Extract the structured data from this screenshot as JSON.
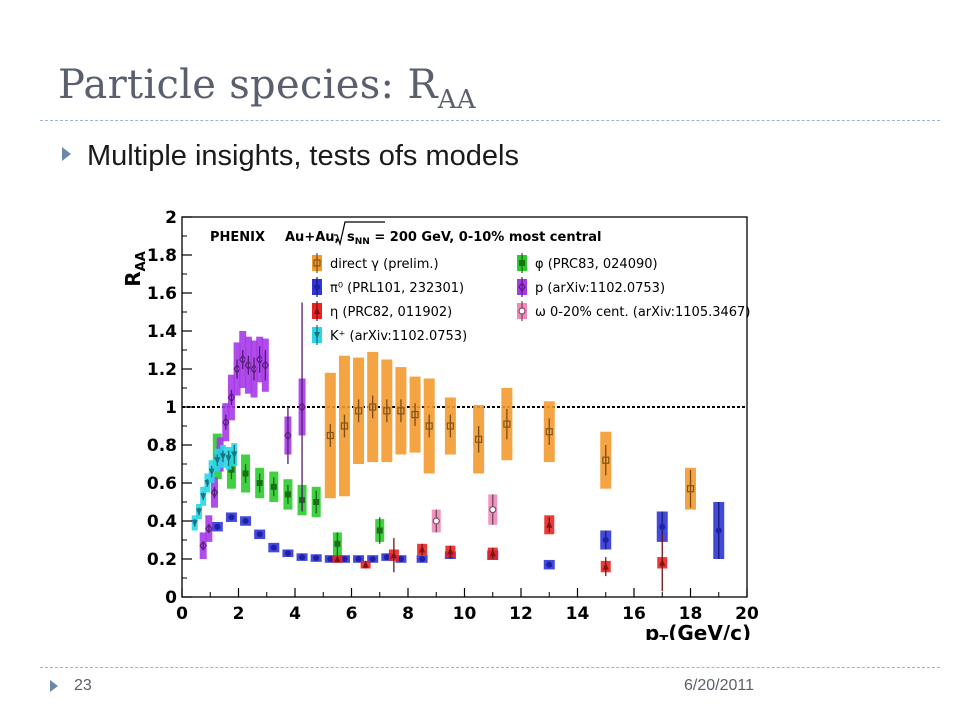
{
  "slide": {
    "title_main": "Particle species: R",
    "title_sub": "AA",
    "bullet": "Multiple insights, tests ofs models",
    "page_number": "23",
    "date": "6/20/2011"
  },
  "chart_data": {
    "type": "scatter",
    "header": {
      "experiment": "PHENIX",
      "system": "Au+Au,",
      "energy_sqrt": "s",
      "energy_sub": "NN",
      "energy_rest": " = 200 GeV, 0-10% most central"
    },
    "ylabel_main": "R",
    "ylabel_sub": "AA",
    "xlabel_main": "p",
    "xlabel_sub": "T",
    "xlabel_rest": "(GeV/c)",
    "xlim": [
      0,
      20
    ],
    "ylim": [
      0,
      2
    ],
    "xticks": [
      0,
      2,
      4,
      6,
      8,
      10,
      12,
      14,
      16,
      18,
      20
    ],
    "yticks": [
      0,
      0.2,
      0.4,
      0.6,
      0.8,
      1,
      1.2,
      1.4,
      1.6,
      1.8,
      2
    ],
    "ytick_labels": [
      "0",
      "0.2",
      "0.4",
      "0.6",
      "0.8",
      "1",
      "1.2",
      "1.4",
      "1.6",
      "1.8",
      "2"
    ],
    "reference_line": 1,
    "series": [
      {
        "name": "direct γ (prelim.)",
        "color": "#f39a2e",
        "marker": "square-open",
        "legend_col": 0,
        "legend_row": 0,
        "points": [
          {
            "x": 5.25,
            "y": 0.85,
            "sys": 0.33,
            "err": 0.06
          },
          {
            "x": 5.75,
            "y": 0.9,
            "sys": 0.37,
            "err": 0.06
          },
          {
            "x": 6.25,
            "y": 0.98,
            "sys": 0.28,
            "err": 0.06
          },
          {
            "x": 6.75,
            "y": 1.0,
            "sys": 0.29,
            "err": 0.06
          },
          {
            "x": 7.25,
            "y": 0.98,
            "sys": 0.27,
            "err": 0.06
          },
          {
            "x": 7.75,
            "y": 0.98,
            "sys": 0.23,
            "err": 0.06
          },
          {
            "x": 8.25,
            "y": 0.96,
            "sys": 0.2,
            "err": 0.06
          },
          {
            "x": 8.75,
            "y": 0.9,
            "sys": 0.25,
            "err": 0.06
          },
          {
            "x": 9.5,
            "y": 0.9,
            "sys": 0.15,
            "err": 0.06
          },
          {
            "x": 10.5,
            "y": 0.83,
            "sys": 0.18,
            "err": 0.07
          },
          {
            "x": 11.5,
            "y": 0.91,
            "sys": 0.19,
            "err": 0.08
          },
          {
            "x": 13.0,
            "y": 0.87,
            "sys": 0.16,
            "err": 0.07
          },
          {
            "x": 15.0,
            "y": 0.72,
            "sys": 0.15,
            "err": 0.08
          },
          {
            "x": 18.0,
            "y": 0.57,
            "sys": 0.11,
            "err": 0.1
          }
        ]
      },
      {
        "name": "φ (PRC83, 024090)",
        "color": "#2ccb2c",
        "marker": "square",
        "legend_col": 1,
        "legend_row": 0,
        "points": [
          {
            "x": 1.25,
            "y": 0.74,
            "sys": 0.12,
            "err": 0.05
          },
          {
            "x": 1.75,
            "y": 0.67,
            "sys": 0.1,
            "err": 0.05
          },
          {
            "x": 2.25,
            "y": 0.65,
            "sys": 0.1,
            "err": 0.05
          },
          {
            "x": 2.75,
            "y": 0.6,
            "sys": 0.08,
            "err": 0.05
          },
          {
            "x": 3.25,
            "y": 0.58,
            "sys": 0.08,
            "err": 0.05
          },
          {
            "x": 3.75,
            "y": 0.54,
            "sys": 0.08,
            "err": 0.05
          },
          {
            "x": 4.25,
            "y": 0.51,
            "sys": 0.08,
            "err": 0.06
          },
          {
            "x": 4.75,
            "y": 0.5,
            "sys": 0.08,
            "err": 0.06
          },
          {
            "x": 5.5,
            "y": 0.28,
            "sys": 0.06,
            "err": 0.06
          },
          {
            "x": 7.0,
            "y": 0.35,
            "sys": 0.06,
            "err": 0.07
          }
        ]
      },
      {
        "name": "π⁰ (PRL101, 232301)",
        "color": "#2f35d6",
        "marker": "circle",
        "legend_col": 0,
        "legend_row": 1,
        "points": [
          {
            "x": 1.25,
            "y": 0.37,
            "sys": 0.025,
            "err": 0.01
          },
          {
            "x": 1.75,
            "y": 0.42,
            "sys": 0.025,
            "err": 0.01
          },
          {
            "x": 2.25,
            "y": 0.4,
            "sys": 0.025,
            "err": 0.01
          },
          {
            "x": 2.75,
            "y": 0.33,
            "sys": 0.025,
            "err": 0.01
          },
          {
            "x": 3.25,
            "y": 0.26,
            "sys": 0.025,
            "err": 0.01
          },
          {
            "x": 3.75,
            "y": 0.23,
            "sys": 0.02,
            "err": 0.01
          },
          {
            "x": 4.25,
            "y": 0.21,
            "sys": 0.02,
            "err": 0.01
          },
          {
            "x": 4.75,
            "y": 0.205,
            "sys": 0.02,
            "err": 0.01
          },
          {
            "x": 5.25,
            "y": 0.2,
            "sys": 0.02,
            "err": 0.01
          },
          {
            "x": 5.75,
            "y": 0.2,
            "sys": 0.02,
            "err": 0.01
          },
          {
            "x": 6.25,
            "y": 0.2,
            "sys": 0.02,
            "err": 0.01
          },
          {
            "x": 6.75,
            "y": 0.2,
            "sys": 0.02,
            "err": 0.01
          },
          {
            "x": 7.25,
            "y": 0.21,
            "sys": 0.02,
            "err": 0.01
          },
          {
            "x": 7.75,
            "y": 0.2,
            "sys": 0.02,
            "err": 0.01
          },
          {
            "x": 8.5,
            "y": 0.2,
            "sys": 0.02,
            "err": 0.01
          },
          {
            "x": 9.5,
            "y": 0.22,
            "sys": 0.02,
            "err": 0.01
          },
          {
            "x": 11.0,
            "y": 0.22,
            "sys": 0.025,
            "err": 0.015
          },
          {
            "x": 13.0,
            "y": 0.17,
            "sys": 0.025,
            "err": 0.015
          },
          {
            "x": 15.0,
            "y": 0.3,
            "sys": 0.05,
            "err": 0.05
          },
          {
            "x": 17.0,
            "y": 0.37,
            "sys": 0.08,
            "err": 0.08
          },
          {
            "x": 19.0,
            "y": 0.35,
            "sys": 0.15,
            "err": 0.15
          }
        ]
      },
      {
        "name": "p (arXiv:1102.0753)",
        "color": "#a639e8",
        "marker": "diamond-open",
        "legend_col": 1,
        "legend_row": 1,
        "points": [
          {
            "x": 0.75,
            "y": 0.27,
            "sys": 0.07,
            "err": 0.02
          },
          {
            "x": 0.95,
            "y": 0.36,
            "sys": 0.07,
            "err": 0.02
          },
          {
            "x": 1.15,
            "y": 0.55,
            "sys": 0.08,
            "err": 0.03
          },
          {
            "x": 1.35,
            "y": 0.75,
            "sys": 0.09,
            "err": 0.03
          },
          {
            "x": 1.55,
            "y": 0.92,
            "sys": 0.1,
            "err": 0.04
          },
          {
            "x": 1.75,
            "y": 1.05,
            "sys": 0.12,
            "err": 0.04
          },
          {
            "x": 1.95,
            "y": 1.2,
            "sys": 0.14,
            "err": 0.05
          },
          {
            "x": 2.15,
            "y": 1.25,
            "sys": 0.15,
            "err": 0.05
          },
          {
            "x": 2.35,
            "y": 1.22,
            "sys": 0.15,
            "err": 0.05
          },
          {
            "x": 2.55,
            "y": 1.2,
            "sys": 0.15,
            "err": 0.06
          },
          {
            "x": 2.75,
            "y": 1.25,
            "sys": 0.12,
            "err": 0.07
          },
          {
            "x": 2.95,
            "y": 1.22,
            "sys": 0.14,
            "err": 0.08
          },
          {
            "x": 3.75,
            "y": 0.85,
            "sys": 0.1,
            "err": 0.15
          },
          {
            "x": 4.25,
            "y": 1.0,
            "sys": 0.15,
            "err": 0.55
          }
        ]
      },
      {
        "name": "η (PRC82, 011902)",
        "color": "#e82424",
        "marker": "triangle",
        "legend_col": 0,
        "legend_row": 2,
        "points": [
          {
            "x": 5.5,
            "y": 0.2,
            "sys": 0.02,
            "err": 0.02
          },
          {
            "x": 6.5,
            "y": 0.17,
            "sys": 0.02,
            "err": 0.02
          },
          {
            "x": 7.5,
            "y": 0.22,
            "sys": 0.03,
            "err": 0.09
          },
          {
            "x": 8.5,
            "y": 0.25,
            "sys": 0.03,
            "err": 0.03
          },
          {
            "x": 9.5,
            "y": 0.24,
            "sys": 0.03,
            "err": 0.03
          },
          {
            "x": 11.0,
            "y": 0.23,
            "sys": 0.03,
            "err": 0.03
          },
          {
            "x": 13.0,
            "y": 0.38,
            "sys": 0.05,
            "err": 0.04
          },
          {
            "x": 15.0,
            "y": 0.16,
            "sys": 0.03,
            "err": 0.05
          },
          {
            "x": 17.0,
            "y": 0.18,
            "sys": 0.03,
            "err": 0.15
          }
        ]
      },
      {
        "name": "ω 0-20% cent. (arXiv:1105.3467)",
        "color": "#ee8ab8",
        "marker": "circle-open",
        "legend_col": 1,
        "legend_row": 2,
        "points": [
          {
            "x": 9.0,
            "y": 0.4,
            "sys": 0.06,
            "err": 0.06
          },
          {
            "x": 11.0,
            "y": 0.46,
            "sys": 0.08,
            "err": 0.08
          }
        ]
      },
      {
        "name": "K⁺ (arXiv:1102.0753)",
        "color": "#29d6e8",
        "marker": "triangle-down",
        "legend_col": 0,
        "legend_row": 3,
        "points": [
          {
            "x": 0.45,
            "y": 0.39,
            "sys": 0.04,
            "err": 0.02
          },
          {
            "x": 0.6,
            "y": 0.45,
            "sys": 0.04,
            "err": 0.02
          },
          {
            "x": 0.75,
            "y": 0.53,
            "sys": 0.05,
            "err": 0.02
          },
          {
            "x": 0.9,
            "y": 0.6,
            "sys": 0.05,
            "err": 0.02
          },
          {
            "x": 1.05,
            "y": 0.66,
            "sys": 0.06,
            "err": 0.03
          },
          {
            "x": 1.25,
            "y": 0.72,
            "sys": 0.06,
            "err": 0.03
          },
          {
            "x": 1.45,
            "y": 0.74,
            "sys": 0.06,
            "err": 0.03
          },
          {
            "x": 1.65,
            "y": 0.73,
            "sys": 0.06,
            "err": 0.04
          },
          {
            "x": 1.85,
            "y": 0.75,
            "sys": 0.06,
            "err": 0.05
          }
        ]
      }
    ]
  }
}
